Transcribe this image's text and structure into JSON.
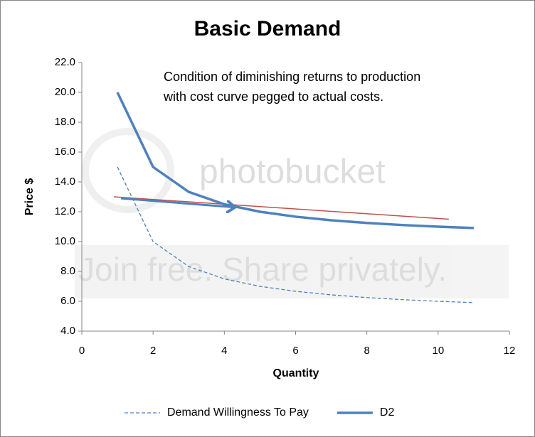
{
  "chart_data": {
    "type": "line",
    "title": "Basic Demand",
    "xlabel": "Quantity",
    "ylabel": "Price $",
    "annotation": [
      "Condition of diminishing returns to production",
      "with cost curve pegged to actual costs."
    ],
    "watermark": [
      "photobucket",
      "Join free. Share privately."
    ],
    "x": [
      1,
      2,
      3,
      4,
      5,
      6,
      7,
      8,
      9,
      10,
      11
    ],
    "series": [
      {
        "name": "Demand Willingness To Pay",
        "color": "#4f81bd",
        "dashed": true,
        "values": [
          15,
          10,
          8.33,
          7.5,
          7,
          6.67,
          6.43,
          6.25,
          6.11,
          6,
          5.91
        ]
      },
      {
        "name": "D2",
        "color": "#4f81bd",
        "dashed": false,
        "values": [
          20,
          15,
          13.33,
          12.5,
          12,
          11.67,
          11.43,
          11.25,
          11.11,
          11,
          10.91
        ]
      }
    ],
    "extra_lines": [
      {
        "color": "#c0504d",
        "x": [
          0.9,
          10.3
        ],
        "values": [
          13.0,
          11.5
        ],
        "arrow": false
      },
      {
        "color": "#4f81bd",
        "x": [
          1.1,
          4.3
        ],
        "values": [
          12.9,
          12.3
        ],
        "arrow": true
      }
    ],
    "xlim": [
      0,
      12
    ],
    "xticks": [
      0,
      2,
      4,
      6,
      8,
      10,
      12
    ],
    "ylim": [
      4,
      22
    ],
    "yticks": [
      {
        "value": 4,
        "label": "4.0"
      },
      {
        "value": 6,
        "label": "6.0"
      },
      {
        "value": 8,
        "label": "8.0"
      },
      {
        "value": 10,
        "label": "10.0"
      },
      {
        "value": 12,
        "label": "12.0"
      },
      {
        "value": 14,
        "label": "14.0"
      },
      {
        "value": 16,
        "label": "16.0"
      },
      {
        "value": 18,
        "label": "18.0"
      },
      {
        "value": 20,
        "label": "20.0"
      },
      {
        "value": 22,
        "label": "22.0"
      }
    ],
    "legend": "bottom"
  }
}
